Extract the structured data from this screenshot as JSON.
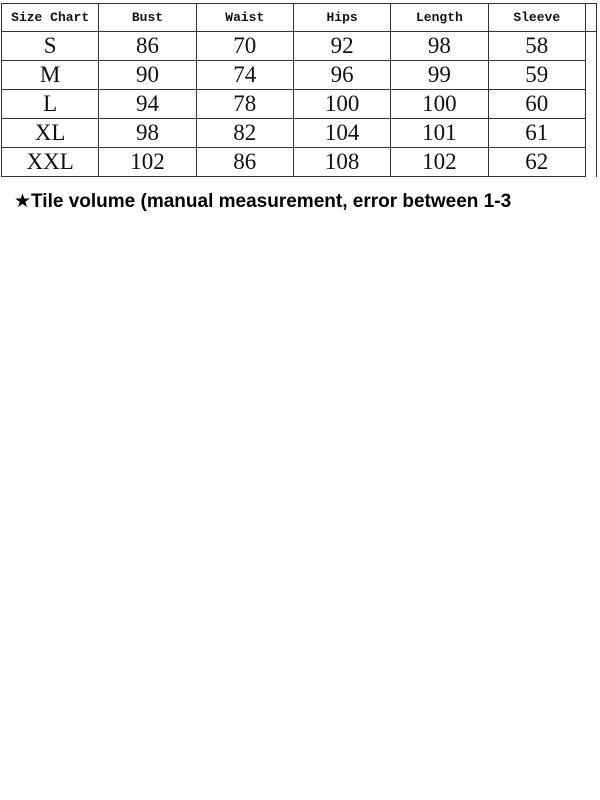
{
  "size_chart": {
    "headers": [
      "Size Chart",
      "Bust",
      "Waist",
      "Hips",
      "Length",
      "Sleeve"
    ],
    "rows": [
      [
        "S",
        "86",
        "70",
        "92",
        "98",
        "58"
      ],
      [
        "M",
        "90",
        "74",
        "96",
        "99",
        "59"
      ],
      [
        "L",
        "94",
        "78",
        "100",
        "100",
        "60"
      ],
      [
        "XL",
        "98",
        "82",
        "104",
        "101",
        "61"
      ],
      [
        "XXL",
        "102",
        "86",
        "108",
        "102",
        "62"
      ]
    ]
  },
  "note": {
    "icon": "star-icon",
    "star": "★",
    "text": "Tile volume (manual measurement, error between 1-3"
  }
}
